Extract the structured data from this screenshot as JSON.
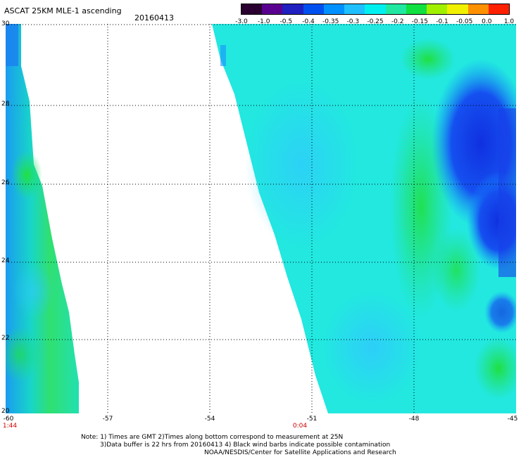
{
  "header": {
    "title": "ASCAT 25KM MLE-1 ascending",
    "date": "20160413"
  },
  "colorbar": {
    "labels": [
      "-3.0",
      "-1.0",
      "-0.5",
      "-0.4",
      "-0.35",
      "-0.3",
      "-0.25",
      "-0.2",
      "-0.15",
      "-0.1",
      "-0.05",
      "0.0",
      "1.0"
    ],
    "colors": [
      "#2a0030",
      "#5a0090",
      "#2020c0",
      "#0050f0",
      "#0090ff",
      "#20c0ff",
      "#00f0f0",
      "#20e8a0",
      "#10e040",
      "#a0f000",
      "#f0f000",
      "#ff9000",
      "#ff2000"
    ]
  },
  "axes": {
    "lat_labels": [
      "30",
      "28",
      "26",
      "24",
      "22",
      "20"
    ],
    "lon_labels": [
      "-60",
      "-57",
      "-54",
      "-51",
      "-48",
      "-45"
    ],
    "time_labels": [
      "1:44",
      "0:04"
    ]
  },
  "notes": {
    "line1": "Note: 1) Times are GMT 2)Times along bottom correspond to measurement at 25N",
    "line2": "3)Data buffer is 22 hrs from 20160413 4) Black wind barbs indicate possible contamination",
    "line3": "NOAA/NESDIS/Center for Satellite Applications and Research"
  }
}
